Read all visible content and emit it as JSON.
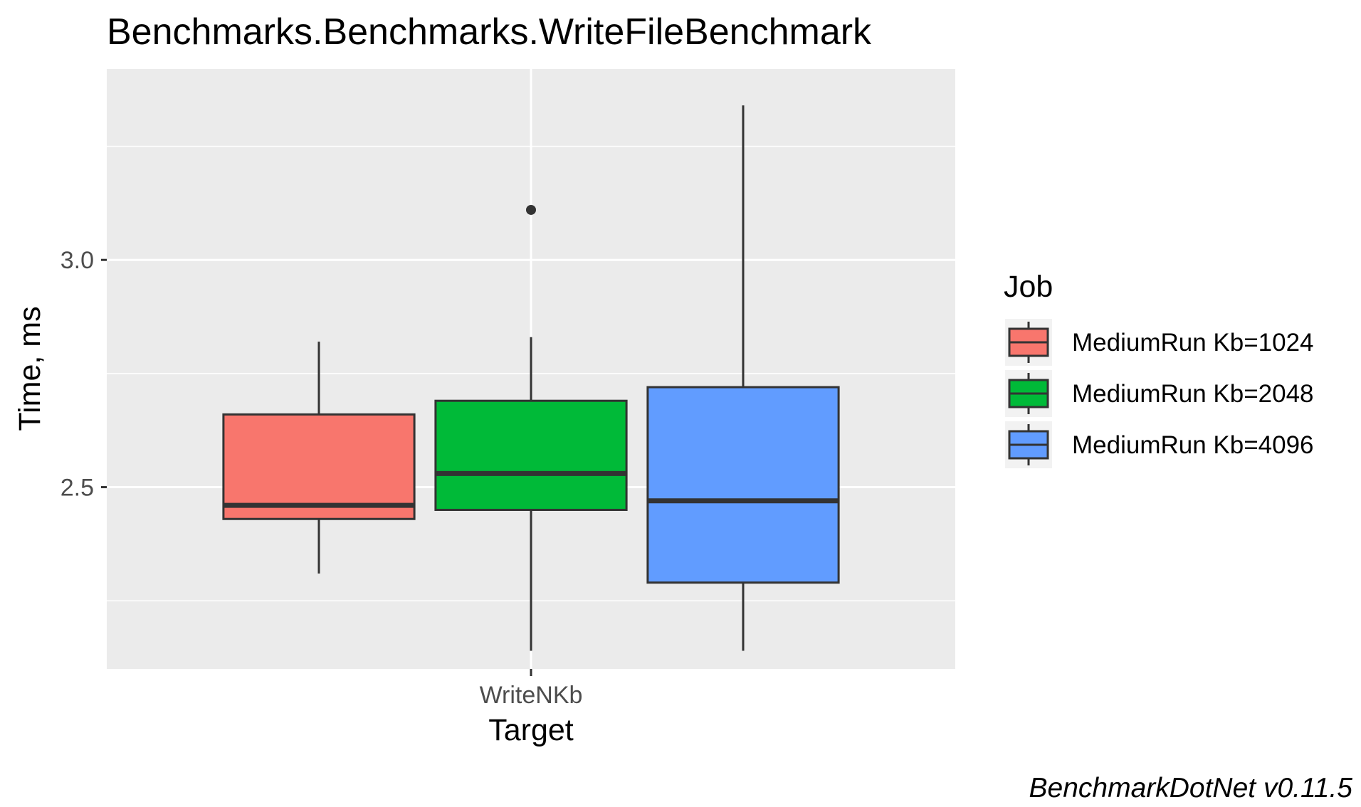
{
  "chart_data": {
    "type": "boxplot",
    "title": "Benchmarks.Benchmarks.WriteFileBenchmark",
    "xlabel": "Target",
    "ylabel": "Time, ms",
    "categories": [
      "WriteNKb"
    ],
    "y_ticks": [
      {
        "value": 2.5,
        "label": "2.5"
      },
      {
        "value": 3.0,
        "label": "3.0"
      }
    ],
    "ylim": [
      2.1,
      3.42
    ],
    "grid": true,
    "panel_background": "#ebebeb",
    "legend": {
      "title": "Job",
      "position": "right"
    },
    "series": [
      {
        "name": "MediumRun Kb=1024",
        "color": "#f8766d",
        "category": "WriteNKb",
        "whisker_low": 2.31,
        "q1": 2.43,
        "median": 2.46,
        "q3": 2.66,
        "whisker_high": 2.82,
        "outliers": []
      },
      {
        "name": "MediumRun Kb=2048",
        "color": "#00ba38",
        "category": "WriteNKb",
        "whisker_low": 2.14,
        "q1": 2.45,
        "median": 2.53,
        "q3": 2.69,
        "whisker_high": 2.83,
        "outliers": [
          3.11
        ]
      },
      {
        "name": "MediumRun Kb=4096",
        "color": "#619cff",
        "category": "WriteNKb",
        "whisker_low": 2.14,
        "q1": 2.29,
        "median": 2.47,
        "q3": 2.72,
        "whisker_high": 3.34,
        "outliers": []
      }
    ],
    "caption": "BenchmarkDotNet v0.11.5"
  }
}
